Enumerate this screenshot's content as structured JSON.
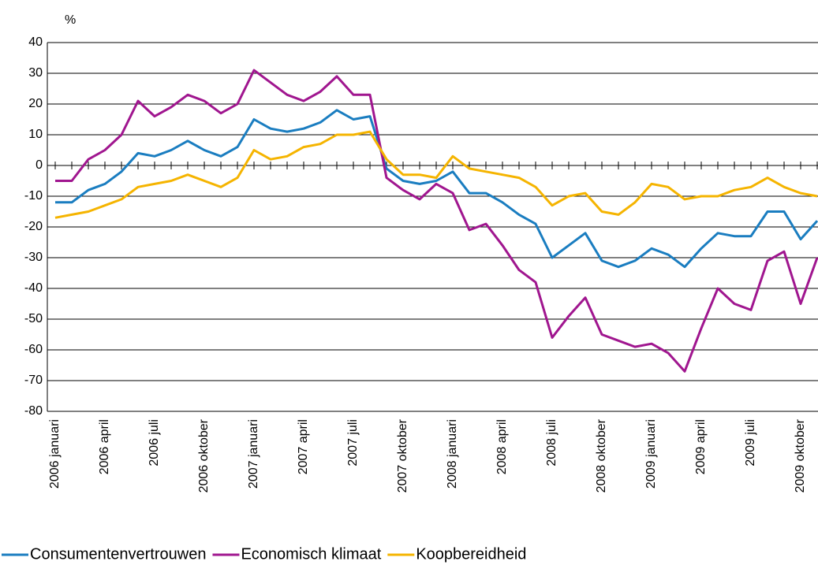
{
  "chart_data": {
    "type": "line",
    "y_unit_label": "%",
    "categories": [
      "2006 januari",
      null,
      null,
      "2006 april",
      null,
      null,
      "2006 juli",
      null,
      null,
      "2006 oktober",
      null,
      null,
      "2007 januari",
      null,
      null,
      "2007 april",
      null,
      null,
      "2007 juli",
      null,
      null,
      "2007 oktober",
      null,
      null,
      "2008 januari",
      null,
      null,
      "2008 april",
      null,
      null,
      "2008 juli",
      null,
      null,
      "2008 oktober",
      null,
      null,
      "2009 januari",
      null,
      null,
      "2009 april",
      null,
      null,
      "2009 juli",
      null,
      null,
      "2009 oktober",
      null
    ],
    "series": [
      {
        "name": "Consumentenvertrouwen",
        "color": "#1a7dc0",
        "values": [
          -12,
          -12,
          -8,
          -6,
          -2,
          4,
          3,
          5,
          8,
          5,
          3,
          6,
          15,
          12,
          11,
          12,
          14,
          18,
          15,
          16,
          -1,
          -5,
          -6,
          -5,
          -2,
          -9,
          -9,
          -12,
          -16,
          -19,
          -30,
          -26,
          -22,
          -31,
          -33,
          -31,
          -27,
          -29,
          -33,
          -27,
          -22,
          -23,
          -23,
          -15,
          -15,
          -24,
          -18
        ]
      },
      {
        "name": "Economisch klimaat",
        "color": "#a0168f",
        "values": [
          -5,
          -5,
          2,
          5,
          10,
          21,
          16,
          19,
          23,
          21,
          17,
          20,
          31,
          27,
          23,
          21,
          24,
          29,
          23,
          23,
          -4,
          -8,
          -11,
          -6,
          -9,
          -21,
          -19,
          -26,
          -34,
          -38,
          -56,
          -49,
          -43,
          -55,
          -57,
          -59,
          -58,
          -61,
          -67,
          -53,
          -40,
          -45,
          -47,
          -31,
          -28,
          -45,
          -30
        ]
      },
      {
        "name": "Koopbereidheid",
        "color": "#f5b400",
        "values": [
          -17,
          -16,
          -15,
          -13,
          -11,
          -7,
          -6,
          -5,
          -3,
          -5,
          -7,
          -4,
          5,
          2,
          3,
          6,
          7,
          10,
          10,
          11,
          2,
          -3,
          -3,
          -4,
          3,
          -1,
          -2,
          -3,
          -4,
          -7,
          -13,
          -10,
          -9,
          -15,
          -16,
          -12,
          -6,
          -7,
          -11,
          -10,
          -10,
          -8,
          -7,
          -4,
          -7,
          -9,
          -10
        ]
      }
    ],
    "ylim": [
      -80,
      40
    ],
    "yticks": [
      -80,
      -70,
      -60,
      -50,
      -40,
      -30,
      -20,
      -10,
      0,
      10,
      20,
      30,
      40
    ],
    "grid": true
  }
}
